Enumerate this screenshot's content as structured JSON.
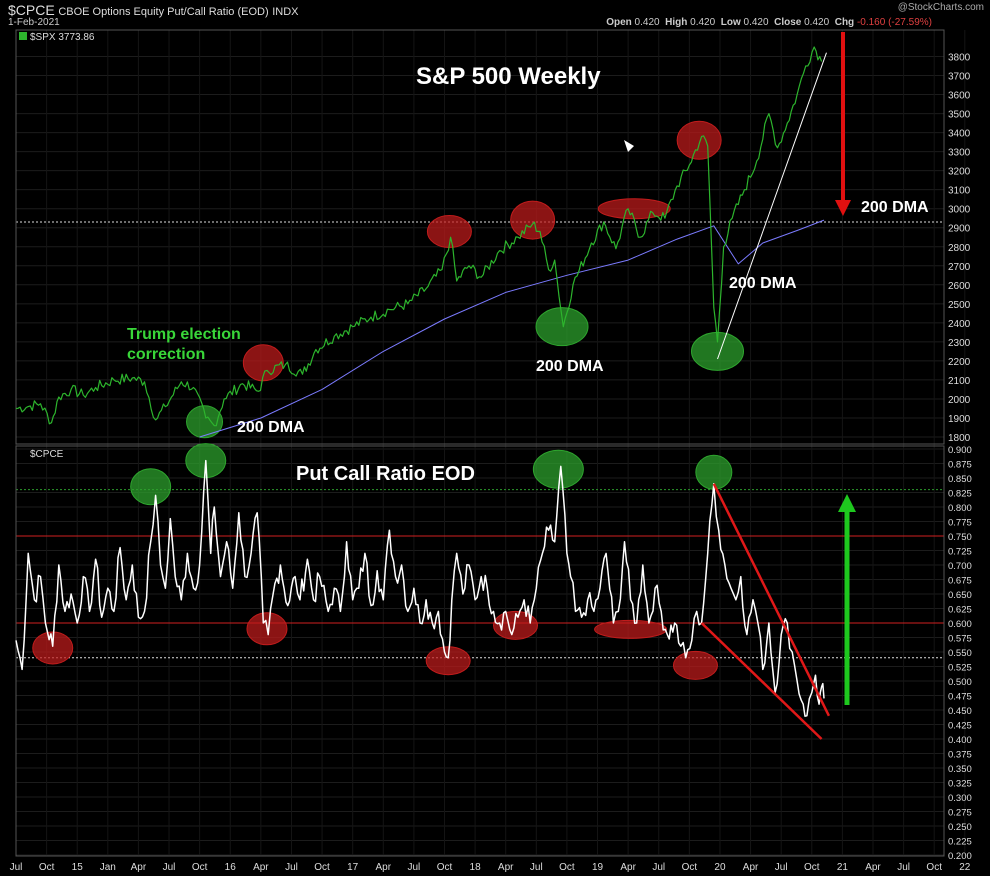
{
  "header": {
    "symbol": "$CPCE",
    "name": "CBOE Options Equity Put/Call Ratio (EOD)",
    "exchange": "INDX",
    "date": "1-Feb-2021",
    "watermark": "@StockCharts.com",
    "ohlc": {
      "open_label": "Open",
      "open": "0.420",
      "high_label": "High",
      "high": "0.420",
      "low_label": "Low",
      "low": "0.420",
      "close_label": "Close",
      "close": "0.420",
      "chg_label": "Chg",
      "chg": "-0.160 (-27.59%)"
    },
    "chg_icon": "triangle-down-icon"
  },
  "colors": {
    "background": "#000000",
    "spx_line": "#2db52d",
    "dma_line": "#7b7bff",
    "ratio_line": "#ffffff",
    "red_marker": "#c11c1c",
    "green_marker": "#2ea52e",
    "arrow_red": "#e01010",
    "arrow_green": "#1ec81e",
    "hline_red": "#d02020"
  },
  "chart_data": [
    {
      "type": "line",
      "panel": "top",
      "legend": "$SPX 3773.86",
      "title": "S&P 500 Weekly",
      "yaxis": {
        "ticks": [
          "3800",
          "3700",
          "3600",
          "3500",
          "3400",
          "3300",
          "3200",
          "3100",
          "3000",
          "2900",
          "2800",
          "2700",
          "2600",
          "2500",
          "2400",
          "2300",
          "2200",
          "2100",
          "2000",
          "1900",
          "1800"
        ]
      },
      "series": [
        {
          "name": "$SPX",
          "points": [
            [
              2014.5,
              1950
            ],
            [
              2014.6,
              1960
            ],
            [
              2014.7,
              1975
            ],
            [
              2014.79,
              1875
            ],
            [
              2014.85,
              2010
            ],
            [
              2014.95,
              2050
            ],
            [
              2015.05,
              2020
            ],
            [
              2015.15,
              2060
            ],
            [
              2015.3,
              2100
            ],
            [
              2015.45,
              2110
            ],
            [
              2015.55,
              2090
            ],
            [
              2015.64,
              1890
            ],
            [
              2015.72,
              1960
            ],
            [
              2015.85,
              2090
            ],
            [
              2015.95,
              2060
            ],
            [
              2016.05,
              1900
            ],
            [
              2016.12,
              1860
            ],
            [
              2016.2,
              2000
            ],
            [
              2016.35,
              2080
            ],
            [
              2016.48,
              2040
            ],
            [
              2016.55,
              2150
            ],
            [
              2016.7,
              2180
            ],
            [
              2016.84,
              2130
            ],
            [
              2016.95,
              2260
            ],
            [
              2017.1,
              2330
            ],
            [
              2017.25,
              2380
            ],
            [
              2017.4,
              2430
            ],
            [
              2017.55,
              2470
            ],
            [
              2017.7,
              2500
            ],
            [
              2017.85,
              2580
            ],
            [
              2017.98,
              2680
            ],
            [
              2018.05,
              2850
            ],
            [
              2018.1,
              2620
            ],
            [
              2018.2,
              2700
            ],
            [
              2018.3,
              2640
            ],
            [
              2018.45,
              2780
            ],
            [
              2018.6,
              2850
            ],
            [
              2018.72,
              2920
            ],
            [
              2018.78,
              2880
            ],
            [
              2018.85,
              2680
            ],
            [
              2018.9,
              2730
            ],
            [
              2018.97,
              2380
            ],
            [
              2019.05,
              2600
            ],
            [
              2019.2,
              2820
            ],
            [
              2019.3,
              2930
            ],
            [
              2019.4,
              2790
            ],
            [
              2019.5,
              3000
            ],
            [
              2019.6,
              2850
            ],
            [
              2019.7,
              2980
            ],
            [
              2019.8,
              2950
            ],
            [
              2019.9,
              3120
            ],
            [
              2020.0,
              3230
            ],
            [
              2020.1,
              3380
            ],
            [
              2020.15,
              3330
            ],
            [
              2020.2,
              2480
            ],
            [
              2020.23,
              2300
            ],
            [
              2020.28,
              2800
            ],
            [
              2020.35,
              2950
            ],
            [
              2020.45,
              3100
            ],
            [
              2020.55,
              3250
            ],
            [
              2020.65,
              3500
            ],
            [
              2020.72,
              3320
            ],
            [
              2020.8,
              3450
            ],
            [
              2020.88,
              3600
            ],
            [
              2020.95,
              3750
            ],
            [
              2021.02,
              3850
            ],
            [
              2021.08,
              3774
            ]
          ]
        },
        {
          "name": "200 DMA",
          "points": [
            [
              2016.0,
              1800
            ],
            [
              2016.5,
              1900
            ],
            [
              2017.0,
              2050
            ],
            [
              2017.5,
              2250
            ],
            [
              2018.0,
              2420
            ],
            [
              2018.5,
              2560
            ],
            [
              2019.0,
              2650
            ],
            [
              2019.5,
              2730
            ],
            [
              2019.9,
              2840
            ],
            [
              2020.2,
              2910
            ],
            [
              2020.4,
              2710
            ],
            [
              2020.6,
              2820
            ],
            [
              2020.9,
              2890
            ],
            [
              2021.1,
              2940
            ]
          ]
        }
      ],
      "annotations": [
        "Trump election",
        "correction",
        "200 DMA",
        "200 DMA",
        "200 DMA",
        "200 DMA"
      ]
    },
    {
      "type": "line",
      "panel": "bottom",
      "legend": "$CPCE",
      "title": "Put Call Ratio EOD",
      "yaxis": {
        "ticks": [
          "0.900",
          "0.875",
          "0.850",
          "0.825",
          "0.800",
          "0.775",
          "0.750",
          "0.725",
          "0.700",
          "0.675",
          "0.650",
          "0.625",
          "0.600",
          "0.575",
          "0.550",
          "0.525",
          "0.500",
          "0.475",
          "0.450",
          "0.425",
          "0.400",
          "0.375",
          "0.350",
          "0.325",
          "0.300",
          "0.275",
          "0.250",
          "0.225",
          "0.200"
        ]
      },
      "reference_lines": [
        0.83,
        0.75,
        0.6,
        0.54
      ],
      "series": [
        {
          "name": "$CPCE",
          "points": [
            [
              2014.5,
              0.57
            ],
            [
              2014.55,
              0.52
            ],
            [
              2014.6,
              0.72
            ],
            [
              2014.65,
              0.64
            ],
            [
              2014.7,
              0.68
            ],
            [
              2014.74,
              0.6
            ],
            [
              2014.8,
              0.56
            ],
            [
              2014.85,
              0.7
            ],
            [
              2014.9,
              0.62
            ],
            [
              2014.95,
              0.65
            ],
            [
              2015.0,
              0.6
            ],
            [
              2015.05,
              0.68
            ],
            [
              2015.1,
              0.62
            ],
            [
              2015.15,
              0.71
            ],
            [
              2015.2,
              0.61
            ],
            [
              2015.25,
              0.66
            ],
            [
              2015.3,
              0.62
            ],
            [
              2015.35,
              0.73
            ],
            [
              2015.4,
              0.64
            ],
            [
              2015.45,
              0.7
            ],
            [
              2015.5,
              0.61
            ],
            [
              2015.55,
              0.62
            ],
            [
              2015.6,
              0.74
            ],
            [
              2015.64,
              0.82
            ],
            [
              2015.68,
              0.7
            ],
            [
              2015.72,
              0.66
            ],
            [
              2015.76,
              0.78
            ],
            [
              2015.8,
              0.68
            ],
            [
              2015.85,
              0.64
            ],
            [
              2015.9,
              0.72
            ],
            [
              2015.95,
              0.66
            ],
            [
              2016.0,
              0.7
            ],
            [
              2016.05,
              0.88
            ],
            [
              2016.09,
              0.72
            ],
            [
              2016.12,
              0.8
            ],
            [
              2016.17,
              0.68
            ],
            [
              2016.22,
              0.74
            ],
            [
              2016.27,
              0.66
            ],
            [
              2016.32,
              0.79
            ],
            [
              2016.37,
              0.68
            ],
            [
              2016.42,
              0.72
            ],
            [
              2016.47,
              0.79
            ],
            [
              2016.52,
              0.6
            ],
            [
              2016.56,
              0.58
            ],
            [
              2016.6,
              0.65
            ],
            [
              2016.66,
              0.7
            ],
            [
              2016.72,
              0.63
            ],
            [
              2016.78,
              0.68
            ],
            [
              2016.82,
              0.64
            ],
            [
              2016.88,
              0.71
            ],
            [
              2016.93,
              0.64
            ],
            [
              2016.98,
              0.68
            ],
            [
              2017.05,
              0.62
            ],
            [
              2017.1,
              0.66
            ],
            [
              2017.15,
              0.62
            ],
            [
              2017.2,
              0.74
            ],
            [
              2017.25,
              0.64
            ],
            [
              2017.3,
              0.66
            ],
            [
              2017.35,
              0.72
            ],
            [
              2017.4,
              0.63
            ],
            [
              2017.45,
              0.69
            ],
            [
              2017.5,
              0.64
            ],
            [
              2017.55,
              0.76
            ],
            [
              2017.6,
              0.68
            ],
            [
              2017.65,
              0.7
            ],
            [
              2017.7,
              0.62
            ],
            [
              2017.75,
              0.66
            ],
            [
              2017.8,
              0.6
            ],
            [
              2017.85,
              0.64
            ],
            [
              2017.9,
              0.6
            ],
            [
              2017.95,
              0.62
            ],
            [
              2018.0,
              0.55
            ],
            [
              2018.03,
              0.54
            ],
            [
              2018.06,
              0.64
            ],
            [
              2018.1,
              0.72
            ],
            [
              2018.15,
              0.65
            ],
            [
              2018.2,
              0.7
            ],
            [
              2018.25,
              0.64
            ],
            [
              2018.3,
              0.68
            ],
            [
              2018.35,
              0.66
            ],
            [
              2018.4,
              0.62
            ],
            [
              2018.45,
              0.6
            ],
            [
              2018.5,
              0.62
            ],
            [
              2018.55,
              0.58
            ],
            [
              2018.6,
              0.61
            ],
            [
              2018.65,
              0.64
            ],
            [
              2018.7,
              0.6
            ],
            [
              2018.75,
              0.66
            ],
            [
              2018.8,
              0.72
            ],
            [
              2018.85,
              0.76
            ],
            [
              2018.9,
              0.74
            ],
            [
              2018.95,
              0.87
            ],
            [
              2019.0,
              0.72
            ],
            [
              2019.03,
              0.68
            ],
            [
              2019.07,
              0.62
            ],
            [
              2019.12,
              0.61
            ],
            [
              2019.17,
              0.64
            ],
            [
              2019.22,
              0.62
            ],
            [
              2019.27,
              0.66
            ],
            [
              2019.32,
              0.72
            ],
            [
              2019.38,
              0.6
            ],
            [
              2019.42,
              0.62
            ],
            [
              2019.47,
              0.74
            ],
            [
              2019.52,
              0.64
            ],
            [
              2019.57,
              0.6
            ],
            [
              2019.62,
              0.7
            ],
            [
              2019.67,
              0.6
            ],
            [
              2019.72,
              0.66
            ],
            [
              2019.77,
              0.62
            ],
            [
              2019.82,
              0.58
            ],
            [
              2019.88,
              0.6
            ],
            [
              2019.93,
              0.56
            ],
            [
              2019.97,
              0.54
            ],
            [
              2020.02,
              0.57
            ],
            [
              2020.06,
              0.62
            ],
            [
              2020.1,
              0.6
            ],
            [
              2020.15,
              0.72
            ],
            [
              2020.2,
              0.84
            ],
            [
              2020.24,
              0.76
            ],
            [
              2020.29,
              0.7
            ],
            [
              2020.34,
              0.66
            ],
            [
              2020.38,
              0.64
            ],
            [
              2020.42,
              0.68
            ],
            [
              2020.47,
              0.58
            ],
            [
              2020.52,
              0.64
            ],
            [
              2020.56,
              0.6
            ],
            [
              2020.6,
              0.52
            ],
            [
              2020.65,
              0.6
            ],
            [
              2020.7,
              0.48
            ],
            [
              2020.75,
              0.58
            ],
            [
              2020.8,
              0.6
            ],
            [
              2020.84,
              0.55
            ],
            [
              2020.88,
              0.5
            ],
            [
              2020.93,
              0.46
            ],
            [
              2020.96,
              0.44
            ],
            [
              2021.0,
              0.48
            ],
            [
              2021.03,
              0.51
            ],
            [
              2021.06,
              0.46
            ],
            [
              2021.08,
              0.49
            ],
            [
              2021.1,
              0.47
            ]
          ]
        }
      ],
      "trendlines": [
        {
          "from": [
            2020.2,
            0.84
          ],
          "to": [
            2021.14,
            0.44
          ]
        },
        {
          "from": [
            2020.1,
            0.6
          ],
          "to": [
            2021.08,
            0.4
          ]
        }
      ]
    }
  ],
  "xaxis": {
    "labels": [
      "Jul",
      "Oct",
      "15",
      "Jan",
      "Apr",
      "Jul",
      "Oct",
      "16",
      "Apr",
      "Jul",
      "Oct",
      "17",
      "Apr",
      "Jul",
      "Oct",
      "18",
      "Apr",
      "Jul",
      "Oct",
      "19",
      "Apr",
      "Jul",
      "Oct",
      "20",
      "Apr",
      "Jul",
      "Oct",
      "21",
      "Apr",
      "Jul",
      "Oct",
      "22"
    ]
  },
  "annotations_top": {
    "trump_line1": "Trump election",
    "trump_line2": "correction",
    "dma_label": "200 DMA",
    "dma_label_right": "200 DMA",
    "title": "S&P 500 Weekly"
  },
  "annotations_bottom": {
    "title": "Put Call Ratio EOD"
  }
}
